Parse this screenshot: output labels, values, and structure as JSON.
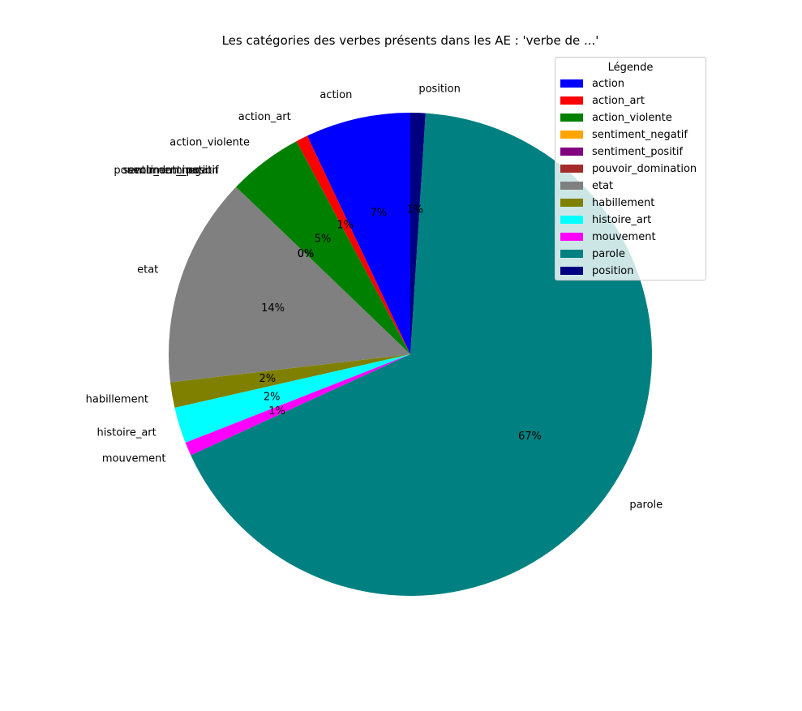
{
  "chart_data": {
    "type": "pie",
    "title": "Les catégories des verbes présents dans les AE : 'verbe de ...'",
    "categories": [
      "action",
      "action_art",
      "action_violente",
      "sentiment_negatif",
      "sentiment_positif",
      "pouvoir_domination",
      "etat",
      "habillement",
      "histoire_art",
      "mouvement",
      "parole",
      "position"
    ],
    "values": [
      7,
      0.8,
      5,
      0,
      0,
      0,
      14,
      1.7,
      2.4,
      0.9,
      67,
      1.0
    ],
    "percent_labels": [
      "7%",
      "1%",
      "5%",
      "0%",
      "0%",
      "0%",
      "14%",
      "2%",
      "2%",
      "1%",
      "67%",
      "1%"
    ],
    "colors": [
      "#0000ff",
      "#ff0000",
      "#008000",
      "#ffa500",
      "#800080",
      "#a52a2a",
      "#808080",
      "#808000",
      "#00ffff",
      "#ff00ff",
      "#008080",
      "#000080"
    ],
    "start_angle": 90,
    "counterclockwise": true,
    "legend": {
      "title": "Légende",
      "position": "top-right"
    }
  }
}
